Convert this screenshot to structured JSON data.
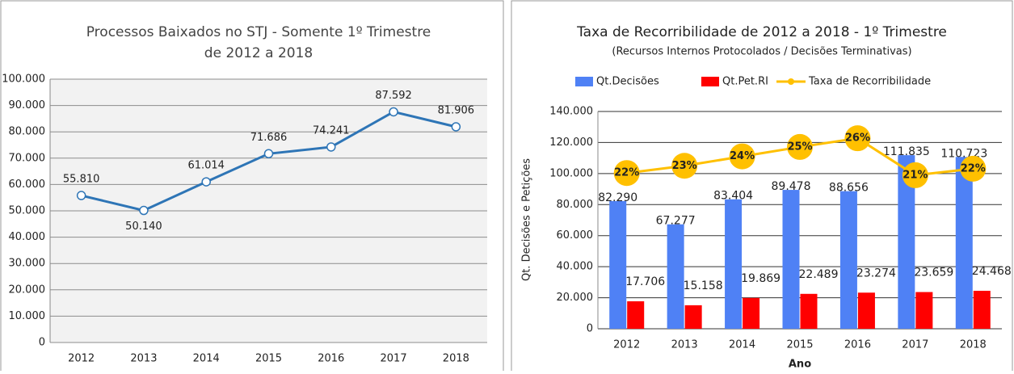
{
  "chart_data": [
    {
      "type": "line",
      "title": [
        "Processos Baixados no STJ - Somente 1º Trimestre",
        "de 2012 a 2018"
      ],
      "categories": [
        "2012",
        "2013",
        "2014",
        "2015",
        "2016",
        "2017",
        "2018"
      ],
      "values": [
        55810,
        50140,
        61014,
        71686,
        74241,
        87592,
        81906
      ],
      "value_labels": [
        "55.810",
        "50.140",
        "61.014",
        "71.686",
        "74.241",
        "87.592",
        "81.906"
      ],
      "color": "#2e75b6",
      "ylim": [
        0,
        100000
      ],
      "yticks": [
        0,
        {
          "value": 10000,
          "label": "10.000"
        },
        {
          "value": 20000,
          "label": "20.000"
        },
        {
          "value": 30000,
          "label": "30.000"
        },
        {
          "value": 40000,
          "label": "40.000"
        },
        {
          "value": 50000,
          "label": "50.000"
        },
        {
          "value": 60000,
          "label": "60.000"
        },
        {
          "value": 70000,
          "label": "70.000"
        },
        {
          "value": 80000,
          "label": "80.000"
        },
        {
          "value": 90000,
          "label": "90.000"
        },
        {
          "value": 100000,
          "label": "100.000"
        }
      ],
      "grid": true
    },
    {
      "type": "bar",
      "title": "Taxa de Recorribilidade de 2012 a 2018 - 1º Trimestre",
      "subtitle": "(Recursos Internos Protocolados / Decisões Terminativas)",
      "x_label": "Ano",
      "y_label": "Qt. Decisões e Petições",
      "categories": [
        "2012",
        "2013",
        "2014",
        "2015",
        "2016",
        "2017",
        "2018"
      ],
      "series": [
        {
          "name": "Qt.Decisões",
          "color": "#4f81f5",
          "values": [
            82290,
            67277,
            83404,
            89478,
            88656,
            111835,
            110723
          ],
          "value_labels": [
            "82.290",
            "67.277",
            "83.404",
            "89.478",
            "88.656",
            "111.835",
            "110.723"
          ]
        },
        {
          "name": "Qt.Pet.RI",
          "color": "#ff0000",
          "values": [
            17706,
            15158,
            19869,
            22489,
            23274,
            23659,
            24468
          ],
          "value_labels": [
            "17.706",
            "15.158",
            "19.869",
            "22.489",
            "23.274",
            "23.659",
            "24.468"
          ]
        },
        {
          "name": "Taxa de Recorribilidade",
          "color": "#ffc000",
          "axis": "y2",
          "values": [
            21.5,
            22.5,
            23.8,
            25.1,
            26.3,
            21.2,
            22.1
          ],
          "value_labels": [
            "22%",
            "23%",
            "24%",
            "25%",
            "26%",
            "21%",
            "22%"
          ]
        }
      ],
      "ylim": [
        0,
        140000
      ],
      "yticks": [
        0,
        {
          "value": 20000,
          "label": "20.000"
        },
        {
          "value": 40000,
          "label": "40.000"
        },
        {
          "value": 60000,
          "label": "60.000"
        },
        {
          "value": 80000,
          "label": "80.000"
        },
        {
          "value": 100000,
          "label": "100.000"
        },
        {
          "value": 120000,
          "label": "120.000"
        },
        {
          "value": 140000,
          "label": "140.000"
        }
      ],
      "y2lim": [
        0,
        30
      ],
      "grid": true
    }
  ]
}
